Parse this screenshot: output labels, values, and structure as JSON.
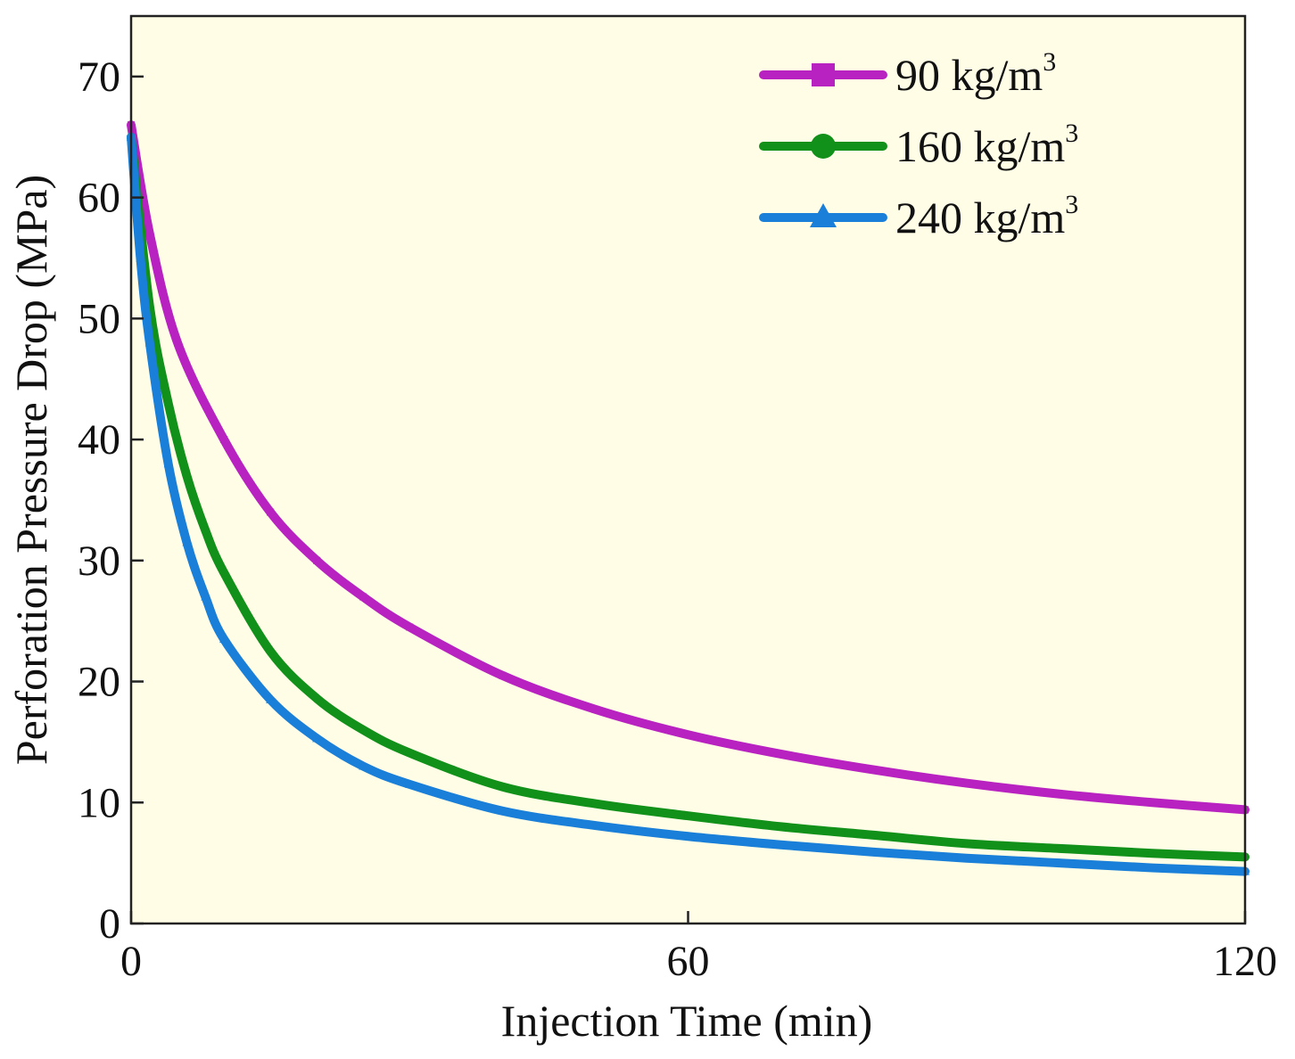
{
  "chart_data": {
    "type": "line",
    "title": "",
    "xlabel": "Injection Time (min)",
    "ylabel": "Perforation Pressure Drop (MPa)",
    "xlim": [
      0,
      120
    ],
    "ylim": [
      0,
      75
    ],
    "xticks": [
      0,
      60,
      120
    ],
    "xtick_labels": [
      "0",
      "60",
      "120"
    ],
    "yticks": [
      0,
      10,
      20,
      30,
      40,
      50,
      60,
      70
    ],
    "ytick_labels": [
      "0",
      "10",
      "20",
      "30",
      "40",
      "50",
      "60",
      "70"
    ],
    "grid": false,
    "legend_position": "top-right",
    "background_color": "#fffde6",
    "series": [
      {
        "name": "90 kg/m3",
        "label_text": "90  kg/m",
        "label_sup": "3",
        "marker": "square",
        "color": "#b822c0",
        "x": [
          0,
          2,
          5,
          10,
          15,
          20,
          25,
          30,
          40,
          50,
          60,
          70,
          80,
          90,
          100,
          110,
          120
        ],
        "y": [
          66,
          57,
          48,
          40,
          34,
          30,
          27,
          24.5,
          20.5,
          17.7,
          15.6,
          14.0,
          12.7,
          11.6,
          10.7,
          10.0,
          9.4
        ]
      },
      {
        "name": "160 kg/m3",
        "label_text": "160 kg/m",
        "label_sup": "3",
        "marker": "circle",
        "color": "#11901a",
        "x": [
          0,
          2,
          4,
          6,
          8,
          10,
          15,
          20,
          25,
          30,
          40,
          50,
          60,
          70,
          80,
          90,
          100,
          110,
          120
        ],
        "y": [
          65,
          51,
          43,
          37,
          32.5,
          29,
          22.5,
          18.6,
          16.0,
          14.1,
          11.3,
          9.9,
          8.9,
          8.0,
          7.3,
          6.6,
          6.2,
          5.8,
          5.5
        ]
      },
      {
        "name": "240 kg/m3",
        "label_text": "240 kg/m",
        "label_sup": "3",
        "marker": "triangle",
        "color": "#1a7fd8",
        "x": [
          0,
          1,
          2,
          4,
          6,
          8,
          10,
          15,
          20,
          25,
          30,
          40,
          50,
          60,
          70,
          80,
          90,
          100,
          110,
          120
        ],
        "y": [
          65,
          55,
          48,
          38,
          31.5,
          27,
          23.5,
          18.5,
          15.3,
          13.0,
          11.5,
          9.3,
          8.1,
          7.2,
          6.5,
          5.9,
          5.4,
          5.0,
          4.6,
          4.3
        ]
      }
    ]
  }
}
